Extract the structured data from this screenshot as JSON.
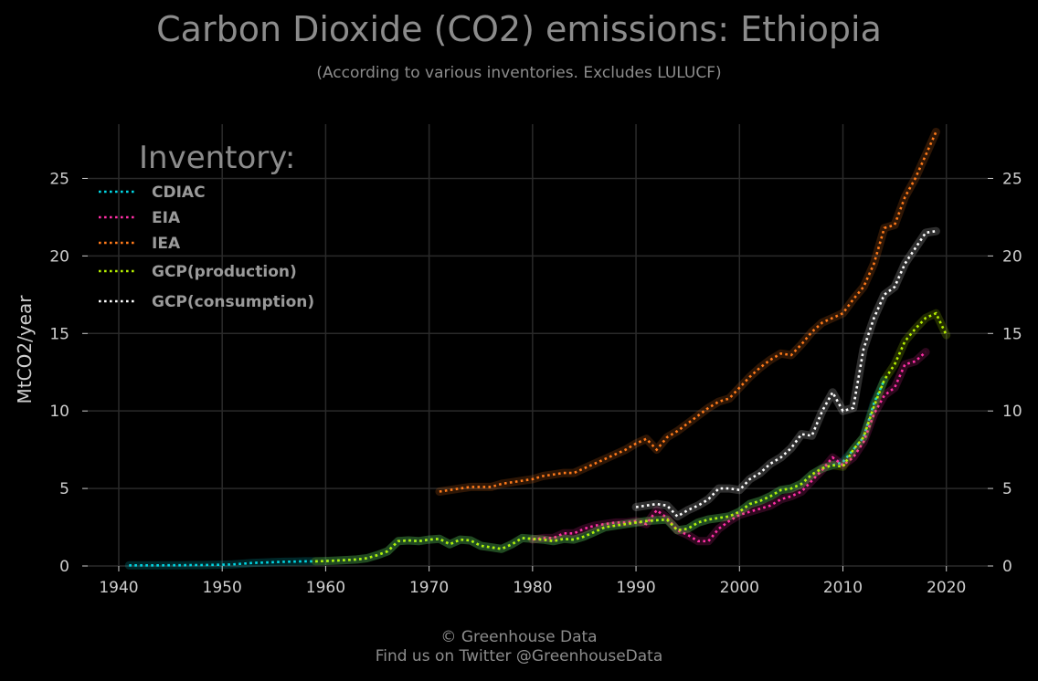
{
  "title": "Carbon Dioxide (CO2) emissions: Ethiopia",
  "subtitle": "(According to various inventories. Excludes LULUCF)",
  "footer": {
    "copyright": "© Greenhouse Data",
    "twitter": "Find us on Twitter @GreenhouseData"
  },
  "chart_data": {
    "type": "line",
    "title": "Carbon Dioxide (CO2) emissions: Ethiopia",
    "subtitle": "(According to various inventories. Excludes LULUCF)",
    "xlabel": "",
    "ylabel": "MtCO2/year",
    "xlim": [
      1937,
      2024
    ],
    "ylim": [
      0,
      28.5
    ],
    "x_ticks": [
      1940,
      1950,
      1960,
      1970,
      1980,
      1990,
      2000,
      2010,
      2020
    ],
    "y_ticks": [
      0,
      5,
      10,
      15,
      20,
      25
    ],
    "grid": true,
    "legend_title": "Inventory:",
    "legend_position": "top-left",
    "colors": {
      "background": "#000000",
      "grid": "#2a2a2a",
      "text": "#8c8c8c",
      "tick_text": "#cfcfcf"
    },
    "series": [
      {
        "name": "CDIAC",
        "color": "#00d8e6",
        "x": [
          1941,
          1942,
          1943,
          1944,
          1945,
          1946,
          1947,
          1948,
          1949,
          1950,
          1951,
          1952,
          1953,
          1954,
          1955,
          1956,
          1957,
          1958,
          1959,
          1960,
          1961,
          1962,
          1963,
          1964,
          1965,
          1966,
          1967,
          1968,
          1969,
          1970,
          1971,
          1972,
          1973,
          1974,
          1975,
          1976,
          1977,
          1978,
          1979,
          1980,
          1981,
          1982,
          1983,
          1984,
          1985,
          1986,
          1987,
          1988,
          1989,
          1990,
          1991,
          1992,
          1993,
          1994,
          1995,
          1996,
          1997,
          1998,
          1999,
          2000,
          2001,
          2002,
          2003,
          2004,
          2005,
          2006,
          2007,
          2008,
          2009,
          2010,
          2011,
          2012,
          2013,
          2014
        ],
        "y": [
          0.04,
          0.04,
          0.04,
          0.04,
          0.05,
          0.05,
          0.06,
          0.06,
          0.07,
          0.08,
          0.1,
          0.15,
          0.2,
          0.22,
          0.25,
          0.27,
          0.28,
          0.3,
          0.3,
          0.32,
          0.35,
          0.38,
          0.42,
          0.5,
          0.7,
          0.95,
          1.6,
          1.65,
          1.6,
          1.7,
          1.75,
          1.4,
          1.7,
          1.65,
          1.3,
          1.2,
          1.1,
          1.4,
          1.8,
          1.75,
          1.7,
          1.6,
          1.75,
          1.7,
          1.9,
          2.2,
          2.5,
          2.6,
          2.7,
          2.8,
          2.9,
          2.95,
          3.0,
          2.3,
          2.4,
          2.8,
          3.0,
          3.1,
          3.2,
          3.5,
          4.0,
          4.2,
          4.5,
          4.9,
          5.0,
          5.3,
          5.9,
          6.3,
          6.5,
          6.7,
          7.5,
          8.3,
          10.5,
          12.0
        ]
      },
      {
        "name": "EIA",
        "color": "#ff2fa6",
        "x": [
          1980,
          1981,
          1982,
          1983,
          1984,
          1985,
          1986,
          1987,
          1988,
          1989,
          1990,
          1991,
          1992,
          1993,
          1994,
          1995,
          1996,
          1997,
          1998,
          1999,
          2000,
          2001,
          2002,
          2003,
          2004,
          2005,
          2006,
          2007,
          2008,
          2009,
          2010,
          2011,
          2012,
          2013,
          2014,
          2015,
          2016,
          2017,
          2018
        ],
        "y": [
          1.7,
          1.8,
          1.8,
          2.1,
          2.1,
          2.4,
          2.6,
          2.7,
          2.8,
          2.8,
          2.9,
          2.7,
          3.6,
          3.1,
          2.3,
          2.0,
          1.6,
          1.6,
          2.4,
          2.9,
          3.3,
          3.5,
          3.7,
          3.9,
          4.3,
          4.5,
          4.8,
          5.5,
          6.2,
          7.0,
          6.5,
          7.0,
          8.0,
          9.8,
          11.0,
          11.5,
          13.0,
          13.2,
          13.8
        ]
      },
      {
        "name": "IEA",
        "color": "#ff7a1a",
        "x": [
          1971,
          1972,
          1973,
          1974,
          1975,
          1976,
          1977,
          1978,
          1979,
          1980,
          1981,
          1982,
          1983,
          1984,
          1985,
          1986,
          1987,
          1988,
          1989,
          1990,
          1991,
          1992,
          1993,
          1994,
          1995,
          1996,
          1997,
          1998,
          1999,
          2000,
          2001,
          2002,
          2003,
          2004,
          2005,
          2006,
          2007,
          2008,
          2009,
          2010,
          2011,
          2012,
          2013,
          2014,
          2015,
          2016,
          2017,
          2018,
          2019
        ],
        "y": [
          4.8,
          4.9,
          5.0,
          5.1,
          5.1,
          5.1,
          5.3,
          5.4,
          5.5,
          5.6,
          5.8,
          5.9,
          6.0,
          6.0,
          6.3,
          6.6,
          6.9,
          7.2,
          7.5,
          7.9,
          8.2,
          7.5,
          8.3,
          8.7,
          9.2,
          9.7,
          10.2,
          10.6,
          10.8,
          11.5,
          12.2,
          12.8,
          13.3,
          13.7,
          13.6,
          14.3,
          15.1,
          15.7,
          16.0,
          16.3,
          17.2,
          18.0,
          19.5,
          21.8,
          22.0,
          23.8,
          25.0,
          26.5,
          28.0
        ]
      },
      {
        "name": "GCP(production)",
        "color": "#b6f000",
        "x": [
          1959,
          1960,
          1961,
          1962,
          1963,
          1964,
          1965,
          1966,
          1967,
          1968,
          1969,
          1970,
          1971,
          1972,
          1973,
          1974,
          1975,
          1976,
          1977,
          1978,
          1979,
          1980,
          1981,
          1982,
          1983,
          1984,
          1985,
          1986,
          1987,
          1988,
          1989,
          1990,
          1991,
          1992,
          1993,
          1994,
          1995,
          1996,
          1997,
          1998,
          1999,
          2000,
          2001,
          2002,
          2003,
          2004,
          2005,
          2006,
          2007,
          2008,
          2009,
          2010,
          2011,
          2012,
          2013,
          2014,
          2015,
          2016,
          2017,
          2018,
          2019,
          2020
        ],
        "y": [
          0.3,
          0.32,
          0.35,
          0.38,
          0.42,
          0.5,
          0.7,
          0.95,
          1.6,
          1.65,
          1.6,
          1.7,
          1.75,
          1.4,
          1.7,
          1.65,
          1.3,
          1.2,
          1.1,
          1.4,
          1.8,
          1.75,
          1.7,
          1.6,
          1.75,
          1.7,
          1.9,
          2.2,
          2.5,
          2.6,
          2.7,
          2.8,
          2.9,
          2.95,
          3.0,
          2.3,
          2.4,
          2.8,
          3.0,
          3.1,
          3.2,
          3.5,
          4.0,
          4.2,
          4.5,
          4.9,
          5.0,
          5.3,
          5.9,
          6.3,
          6.5,
          6.4,
          7.5,
          8.3,
          10.3,
          12.0,
          13.0,
          14.5,
          15.3,
          16.0,
          16.3,
          14.9
        ]
      },
      {
        "name": "GCP(consumption)",
        "color": "#ffffff",
        "x": [
          1990,
          1991,
          1992,
          1993,
          1994,
          1995,
          1996,
          1997,
          1998,
          1999,
          2000,
          2001,
          2002,
          2003,
          2004,
          2005,
          2006,
          2007,
          2008,
          2009,
          2010,
          2011,
          2012,
          2013,
          2014,
          2015,
          2016,
          2017,
          2018,
          2019
        ],
        "y": [
          3.8,
          3.9,
          4.0,
          3.9,
          3.2,
          3.6,
          3.9,
          4.3,
          5.0,
          5.0,
          4.9,
          5.6,
          6.0,
          6.6,
          7.0,
          7.6,
          8.5,
          8.4,
          10.0,
          11.2,
          10.0,
          10.2,
          14.0,
          16.0,
          17.5,
          18.0,
          19.5,
          20.5,
          21.5,
          21.6
        ]
      }
    ]
  }
}
